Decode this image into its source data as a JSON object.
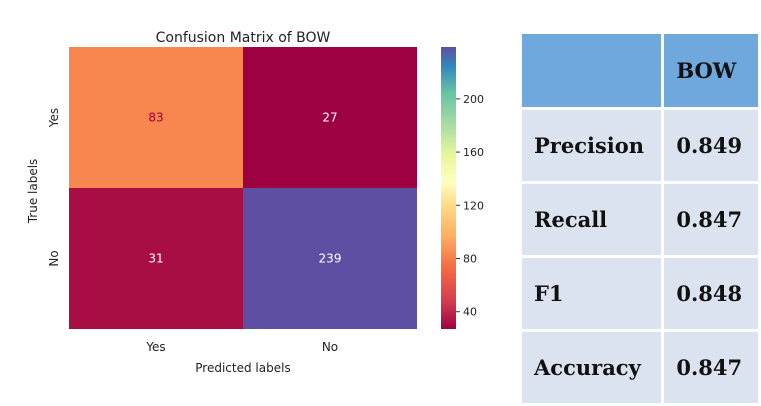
{
  "chart_data": {
    "type": "heatmap",
    "title": "Confusion Matrix of BOW",
    "xlabel": "Predicted labels",
    "ylabel": "True labels",
    "x_categories": [
      "Yes",
      "No"
    ],
    "y_categories": [
      "Yes",
      "No"
    ],
    "values": [
      [
        83,
        27
      ],
      [
        31,
        239
      ]
    ],
    "colormap": "Spectral",
    "colorbar_ticks": [
      40,
      80,
      120,
      160,
      200
    ],
    "colorbar_range": [
      27,
      239
    ]
  },
  "metrics_table": {
    "header": [
      "",
      "BOW"
    ],
    "rows": [
      {
        "metric": "Precision",
        "value": "0.849"
      },
      {
        "metric": "Recall",
        "value": "0.847"
      },
      {
        "metric": "F1",
        "value": "0.848"
      },
      {
        "metric": "Accuracy",
        "value": "0.847"
      }
    ]
  }
}
